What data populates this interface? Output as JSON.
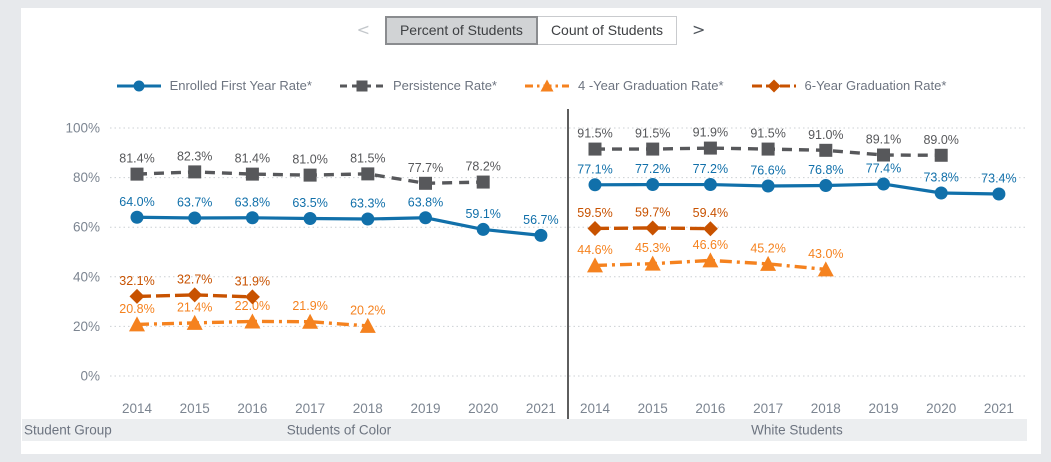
{
  "toolbar": {
    "prev_icon": "<",
    "next_icon": ">",
    "tabs": [
      {
        "label": "Percent of Students",
        "selected": true
      },
      {
        "label": "Count of Students",
        "selected": false
      }
    ]
  },
  "chart_data": {
    "type": "line",
    "title": "",
    "xlabel": "",
    "ylabel": "",
    "ylim": [
      0,
      100
    ],
    "grid": true,
    "legend_position": "top",
    "y_ticks": [
      "100%",
      "80%",
      "60%",
      "40%",
      "20%",
      "0%"
    ],
    "y_tick_values": [
      100,
      80,
      60,
      40,
      20,
      0
    ],
    "categories": [
      "2014",
      "2015",
      "2016",
      "2017",
      "2018",
      "2019",
      "2020",
      "2021"
    ],
    "legend": [
      {
        "name": "Enrolled First Year Rate*",
        "color": "#1170aa",
        "marker": "circle",
        "line": "solid"
      },
      {
        "name": "Persistence Rate*",
        "color": "#57585b",
        "marker": "square",
        "line": "dashed"
      },
      {
        "name": "4 -Year Graduation Rate*",
        "color": "#f5821f",
        "marker": "triangle",
        "line": "dashdot"
      },
      {
        "name": "6-Year Graduation Rate*",
        "color": "#c85200",
        "marker": "diamond",
        "line": "longdash"
      }
    ],
    "panels": [
      {
        "group": "Students of Color",
        "series": [
          {
            "name": "Enrolled First Year Rate*",
            "values": [
              64.0,
              63.7,
              63.8,
              63.5,
              63.3,
              63.8,
              59.1,
              56.7
            ]
          },
          {
            "name": "Persistence Rate*",
            "values": [
              81.4,
              82.3,
              81.4,
              81.0,
              81.5,
              77.7,
              78.2,
              null
            ]
          },
          {
            "name": "4 -Year Graduation Rate*",
            "values": [
              20.8,
              21.4,
              22.0,
              21.9,
              20.2,
              null,
              null,
              null
            ]
          },
          {
            "name": "6-Year Graduation Rate*",
            "values": [
              32.1,
              32.7,
              31.9,
              null,
              null,
              null,
              null,
              null
            ]
          }
        ]
      },
      {
        "group": "White Students",
        "series": [
          {
            "name": "Enrolled First Year Rate*",
            "values": [
              77.1,
              77.2,
              77.2,
              76.6,
              76.8,
              77.4,
              73.8,
              73.4
            ]
          },
          {
            "name": "Persistence Rate*",
            "values": [
              91.5,
              91.5,
              91.9,
              91.5,
              91.0,
              89.1,
              89.0,
              null
            ]
          },
          {
            "name": "4 -Year Graduation Rate*",
            "values": [
              44.6,
              45.3,
              46.6,
              45.2,
              43.0,
              null,
              null,
              null
            ]
          },
          {
            "name": "6-Year Graduation Rate*",
            "values": [
              59.5,
              59.7,
              59.4,
              null,
              null,
              null,
              null,
              null
            ]
          }
        ]
      }
    ]
  },
  "footer": {
    "row_label": "Student Group"
  },
  "colors": {
    "page_bg": "#e7e9ec",
    "card_bg": "#ffffff",
    "grid": "#ccd0d4",
    "axis_text": "#7c8591",
    "band_bg": "#eceef0",
    "band_text": "#6d7480",
    "divider": "#1a1a1a"
  }
}
